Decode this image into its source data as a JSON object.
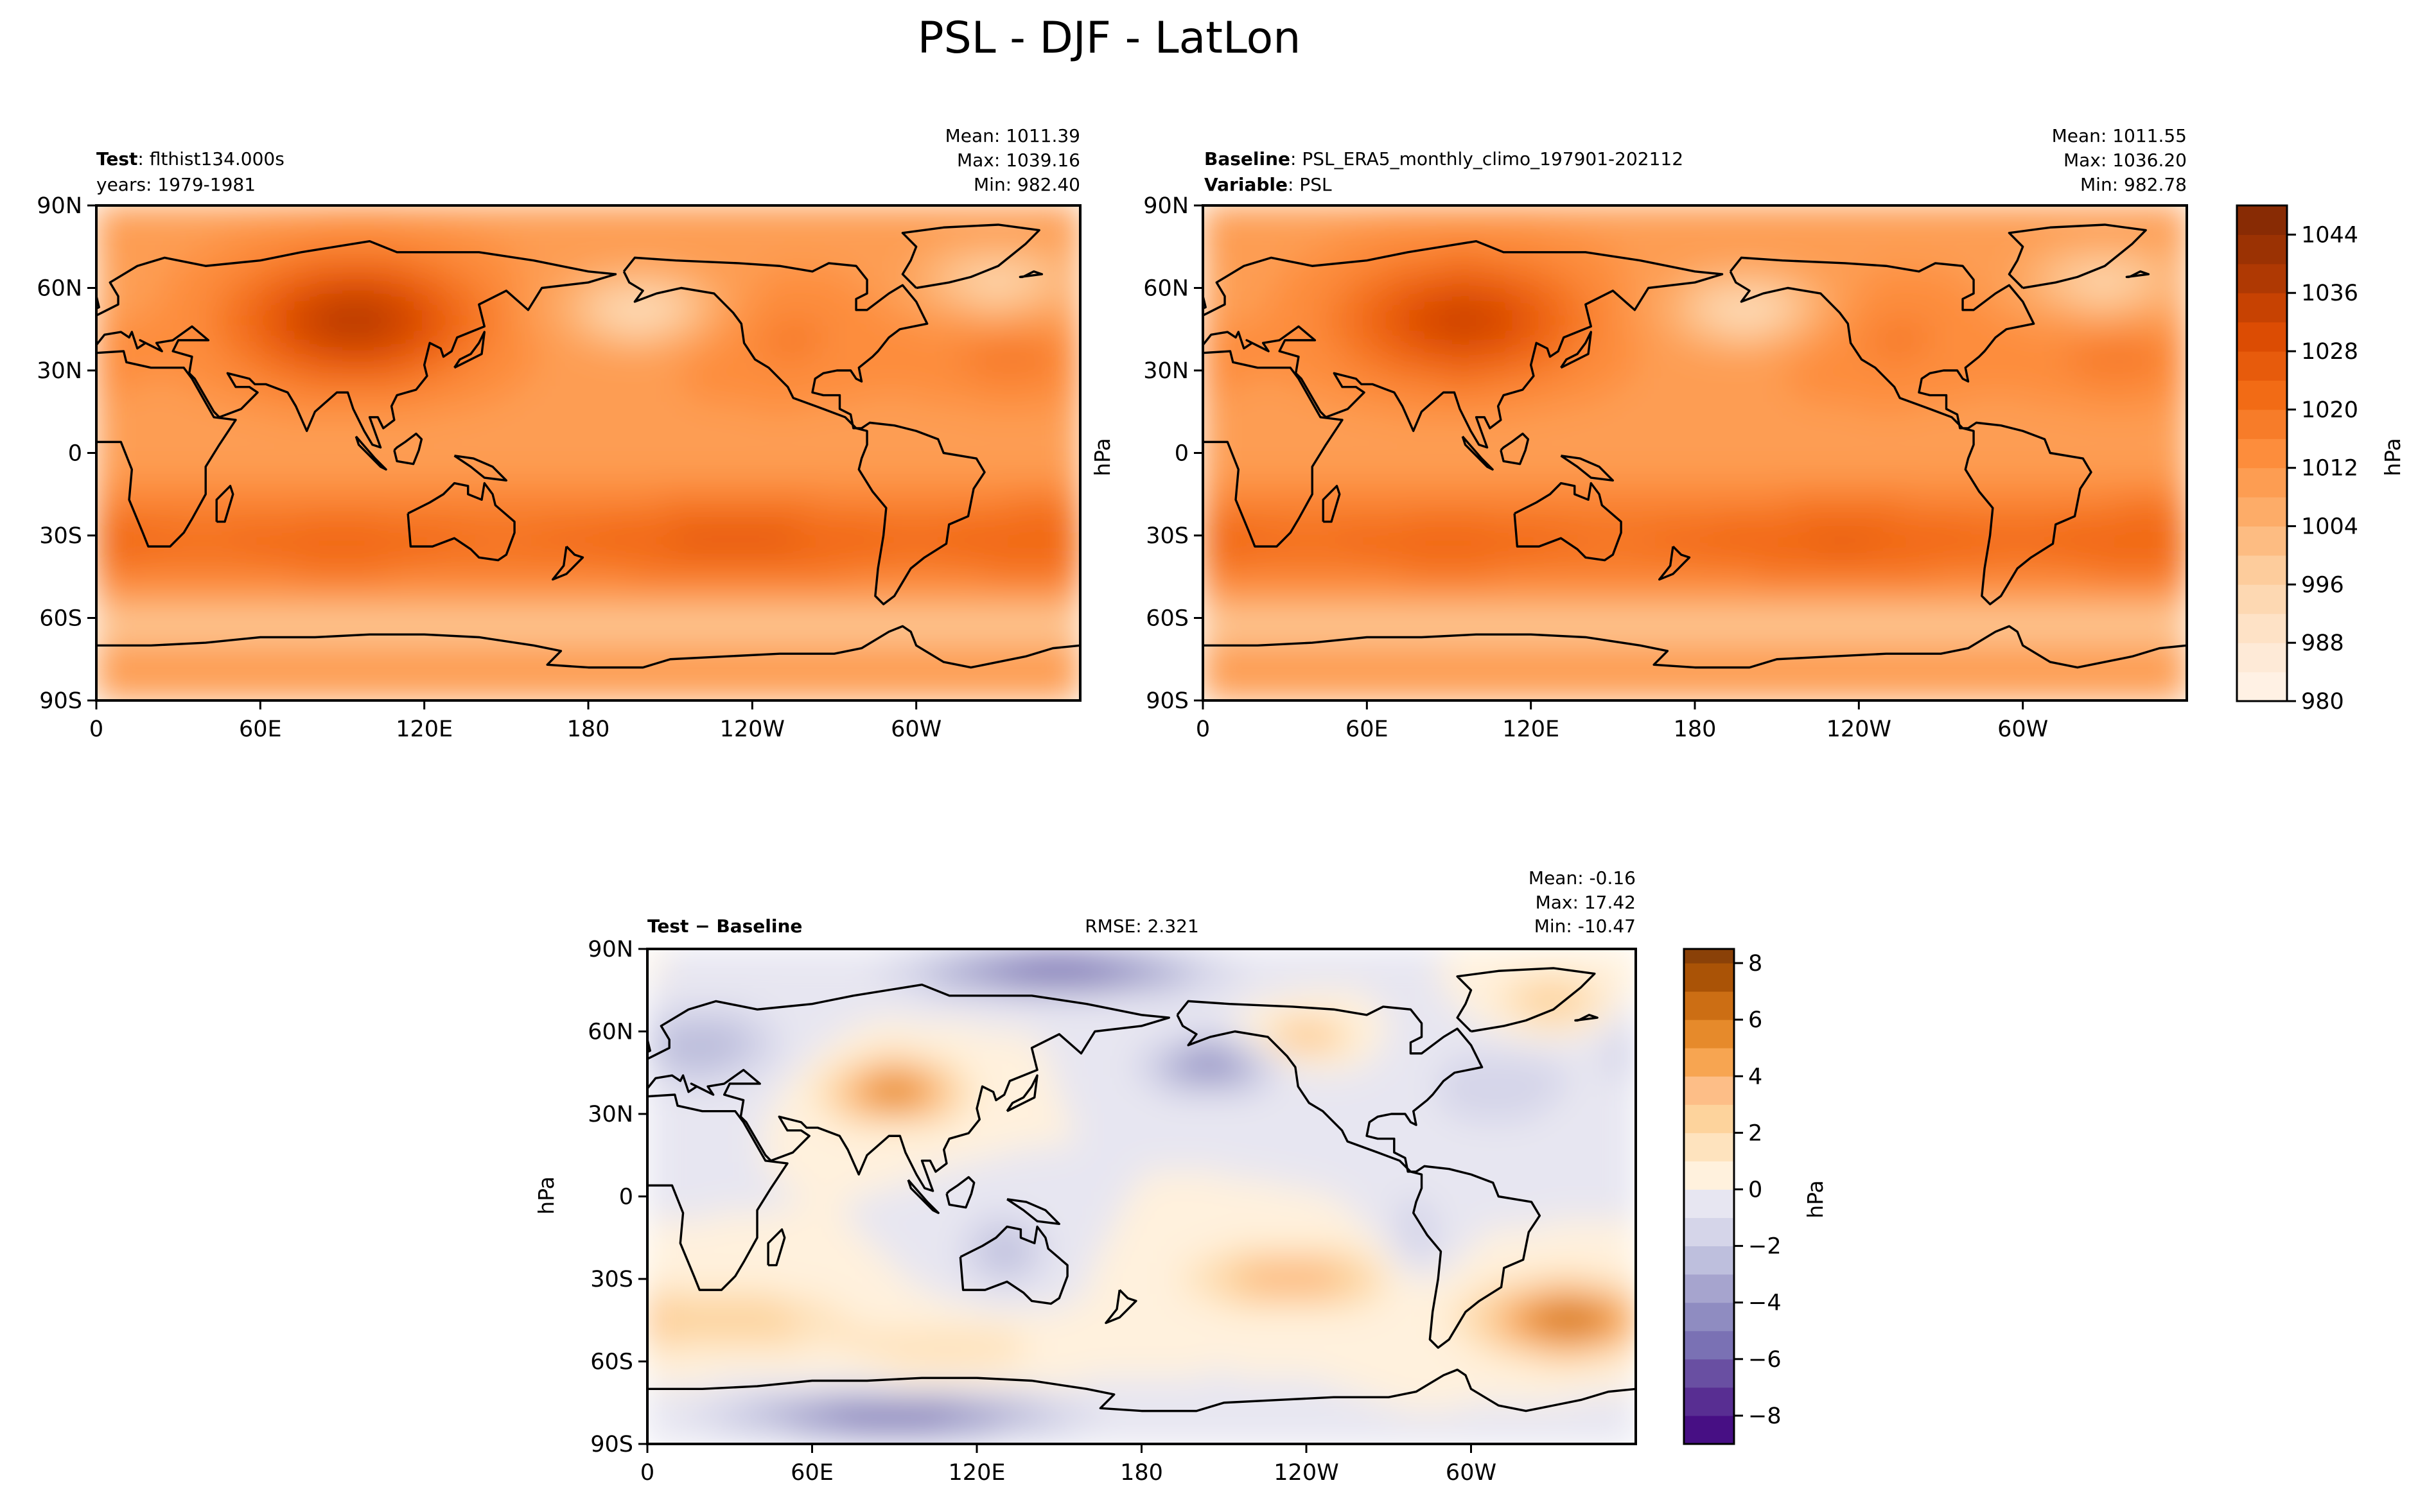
{
  "figure": {
    "title": "PSL - DJF - LatLon"
  },
  "colors": {
    "psl_ramp": [
      "#fff5eb",
      "#fee6ce",
      "#fdd0a2",
      "#fdae6b",
      "#fd8d3c",
      "#f16913",
      "#d94801",
      "#a63603",
      "#7f2704"
    ],
    "diff_neg": [
      "#3f007d",
      "#54278f",
      "#6a51a3",
      "#807dba",
      "#9e9ac8",
      "#bcbddc",
      "#dadaeb",
      "#efedf5"
    ],
    "diff_pos": [
      "#fff7ec",
      "#fee8c8",
      "#fdd49e",
      "#fdbb84",
      "#f59c3c",
      "#d97a1b",
      "#b35806",
      "#7f3b08"
    ],
    "land_line": "#000000"
  },
  "chart_data": [
    {
      "type": "heatmap",
      "id": "test",
      "title_bold": "Test",
      "title_rest": ": flthist134.000s",
      "subtitle": "years: 1979-1981",
      "stats": [
        "Mean: 1011.39",
        "Max: 1039.16",
        "Min: 982.40"
      ],
      "x_ticks": [
        "0",
        "60E",
        "120E",
        "180",
        "120W",
        "60W"
      ],
      "x_values": [
        0,
        60,
        120,
        180,
        240,
        300
      ],
      "y_ticks": [
        "90N",
        "60N",
        "30N",
        "0",
        "30S",
        "60S",
        "90S"
      ],
      "y_values": [
        90,
        60,
        30,
        0,
        -30,
        -60,
        -90
      ],
      "xlim": [
        0,
        360
      ],
      "ylim": [
        -90,
        90
      ],
      "ylabel": "",
      "field": "psl_test"
    },
    {
      "type": "heatmap",
      "id": "baseline",
      "title_lines": [
        {
          "bold": "Baseline",
          "rest": ": PSL_ERA5_monthly_climo_197901-202112"
        },
        {
          "bold": "Variable",
          "rest": ": PSL"
        }
      ],
      "stats": [
        "Mean: 1011.55",
        "Max: 1036.20",
        "Min: 982.78"
      ],
      "x_ticks": [
        "0",
        "60E",
        "120E",
        "180",
        "120W",
        "60W"
      ],
      "x_values": [
        0,
        60,
        120,
        180,
        240,
        300
      ],
      "y_ticks": [
        "90N",
        "60N",
        "30N",
        "0",
        "30S",
        "60S",
        "90S"
      ],
      "y_values": [
        90,
        60,
        30,
        0,
        -30,
        -60,
        -90
      ],
      "xlim": [
        0,
        360
      ],
      "ylim": [
        -90,
        90
      ],
      "ylabel": "hPa",
      "field": "psl_base"
    },
    {
      "type": "heatmap",
      "id": "diff",
      "title_bold": "Test",
      "title_rest": " − Baseline",
      "center_text": "RMSE: 2.321",
      "stats": [
        "Mean: -0.16",
        "Max: 17.42",
        "Min: -10.47"
      ],
      "x_ticks": [
        "0",
        "60E",
        "120E",
        "180",
        "120W",
        "60W"
      ],
      "x_values": [
        0,
        60,
        120,
        180,
        240,
        300
      ],
      "y_ticks": [
        "90N",
        "60N",
        "30N",
        "0",
        "30S",
        "60S",
        "90S"
      ],
      "y_values": [
        90,
        60,
        30,
        0,
        -30,
        -60,
        -90
      ],
      "xlim": [
        0,
        360
      ],
      "ylim": [
        -90,
        90
      ],
      "ylabel": "hPa",
      "field": "psl_diff"
    },
    {
      "type": "colorbar",
      "id": "cbar-psl",
      "label": "hPa",
      "range": [
        980,
        1048
      ],
      "levels": [
        980,
        984,
        988,
        992,
        996,
        1000,
        1004,
        1008,
        1012,
        1016,
        1020,
        1024,
        1028,
        1032,
        1036,
        1040,
        1044,
        1048
      ],
      "tick_values": [
        980,
        988,
        996,
        1004,
        1012,
        1020,
        1028,
        1036,
        1044
      ],
      "tick_labels": [
        "980",
        "988",
        "996",
        "1004",
        "1012",
        "1020",
        "1028",
        "1036",
        "1044"
      ]
    },
    {
      "type": "colorbar",
      "id": "cbar-diff",
      "label": "hPa",
      "range": [
        -9,
        8.5
      ],
      "levels": [
        -9,
        -8,
        -7,
        -6,
        -5,
        -4,
        -3,
        -2,
        -1,
        0,
        1,
        2,
        3,
        4,
        5,
        6,
        7,
        8,
        8.5
      ],
      "tick_values": [
        -8,
        -6,
        -4,
        -2,
        0,
        2,
        4,
        6,
        8
      ],
      "tick_labels": [
        "−8",
        "−6",
        "−4",
        "−2",
        "0",
        "2",
        "4",
        "6",
        "8"
      ]
    }
  ],
  "coastlines": {
    "units": "lon_lat_degrees",
    "outlines": [
      [
        [
          -17,
          21
        ],
        [
          -10,
          28
        ],
        [
          -6,
          36
        ],
        [
          10,
          37
        ],
        [
          11,
          33
        ],
        [
          20,
          31
        ],
        [
          32,
          31
        ],
        [
          35,
          27
        ],
        [
          43,
          13
        ],
        [
          51,
          12
        ],
        [
          45,
          3
        ],
        [
          40,
          -5
        ],
        [
          40,
          -15
        ],
        [
          35,
          -24
        ],
        [
          32,
          -29
        ],
        [
          27,
          -34
        ],
        [
          19,
          -34
        ],
        [
          17,
          -29
        ],
        [
          12,
          -17
        ],
        [
          13,
          -6
        ],
        [
          9,
          4
        ],
        [
          -8,
          4
        ],
        [
          -17,
          14
        ],
        [
          -17,
          21
        ]
      ],
      [
        [
          -10,
          36
        ],
        [
          -9,
          43
        ],
        [
          -1,
          46
        ],
        [
          -4,
          48
        ],
        [
          2,
          51
        ],
        [
          8,
          54
        ],
        [
          8,
          57
        ],
        [
          5,
          62
        ],
        [
          15,
          68
        ],
        [
          25,
          71
        ],
        [
          40,
          68
        ],
        [
          60,
          70
        ],
        [
          75,
          73
        ],
        [
          100,
          77
        ],
        [
          110,
          73
        ],
        [
          140,
          73
        ],
        [
          160,
          70
        ],
        [
          180,
          66
        ],
        [
          190,
          65
        ],
        [
          180,
          62
        ],
        [
          163,
          60
        ],
        [
          158,
          52
        ],
        [
          150,
          59
        ],
        [
          140,
          54
        ],
        [
          142,
          46
        ],
        [
          132,
          42
        ],
        [
          130,
          37
        ],
        [
          127,
          35
        ],
        [
          126,
          38
        ],
        [
          122,
          40
        ],
        [
          120,
          32
        ],
        [
          121,
          28
        ],
        [
          117,
          23
        ],
        [
          110,
          21
        ],
        [
          108,
          17
        ],
        [
          109,
          12
        ],
        [
          105,
          9
        ],
        [
          103,
          13
        ],
        [
          100,
          13
        ],
        [
          104,
          2
        ],
        [
          101,
          3
        ],
        [
          98,
          8
        ],
        [
          94,
          16
        ],
        [
          92,
          22
        ],
        [
          88,
          22
        ],
        [
          80,
          15
        ],
        [
          77,
          8
        ],
        [
          73,
          17
        ],
        [
          70,
          22
        ],
        [
          62,
          25
        ],
        [
          58,
          25
        ],
        [
          56,
          27
        ],
        [
          48,
          29
        ],
        [
          51,
          24
        ],
        [
          56,
          24
        ],
        [
          59,
          22
        ],
        [
          53,
          16
        ],
        [
          45,
          13
        ],
        [
          43,
          15
        ],
        [
          36,
          27
        ],
        [
          34,
          29
        ],
        [
          35,
          35
        ],
        [
          28,
          37
        ],
        [
          30,
          41
        ],
        [
          41,
          41
        ],
        [
          35,
          46
        ],
        [
          28,
          41
        ],
        [
          22,
          40
        ],
        [
          24,
          37
        ],
        [
          20,
          39
        ],
        [
          16,
          41
        ],
        [
          18,
          40
        ],
        [
          15,
          38
        ],
        [
          13,
          44
        ],
        [
          12,
          42
        ],
        [
          9,
          44
        ],
        [
          3,
          43
        ],
        [
          -1,
          38
        ],
        [
          -6,
          36
        ],
        [
          -10,
          36
        ]
      ],
      [
        [
          193,
          66
        ],
        [
          197,
          71
        ],
        [
          212,
          70
        ],
        [
          235,
          69
        ],
        [
          250,
          68
        ],
        [
          262,
          66
        ],
        [
          268,
          69
        ],
        [
          278,
          68
        ],
        [
          282,
          63
        ],
        [
          282,
          58
        ],
        [
          278,
          56
        ],
        [
          278,
          52
        ],
        [
          282,
          52
        ],
        [
          290,
          58
        ],
        [
          295,
          61
        ],
        [
          300,
          55
        ],
        [
          304,
          47
        ],
        [
          294,
          45
        ],
        [
          290,
          42
        ],
        [
          286,
          37
        ],
        [
          284,
          35
        ],
        [
          279,
          31
        ],
        [
          280,
          26
        ],
        [
          278,
          27
        ],
        [
          276,
          30
        ],
        [
          271,
          30
        ],
        [
          266,
          29
        ],
        [
          263,
          27
        ],
        [
          262,
          22
        ],
        [
          266,
          21
        ],
        [
          272,
          21
        ],
        [
          272,
          16
        ],
        [
          276,
          14
        ],
        [
          277,
          9
        ],
        [
          280,
          9
        ],
        [
          283,
          11
        ],
        [
          292,
          10
        ],
        [
          300,
          8
        ],
        [
          308,
          5
        ],
        [
          310,
          0
        ],
        [
          322,
          -2
        ],
        [
          325,
          -7
        ],
        [
          321,
          -13
        ],
        [
          319,
          -23
        ],
        [
          312,
          -26
        ],
        [
          311,
          -33
        ],
        [
          303,
          -38
        ],
        [
          298,
          -42
        ],
        [
          295,
          -47
        ],
        [
          292,
          -52
        ],
        [
          288,
          -55
        ],
        [
          285,
          -52
        ],
        [
          286,
          -42
        ],
        [
          288,
          -30
        ],
        [
          289,
          -20
        ],
        [
          284,
          -14
        ],
        [
          279,
          -6
        ],
        [
          280,
          -2
        ],
        [
          282,
          3
        ],
        [
          282,
          8
        ],
        [
          278,
          9
        ],
        [
          274,
          13
        ],
        [
          266,
          16
        ],
        [
          255,
          20
        ],
        [
          253,
          24
        ],
        [
          246,
          31
        ],
        [
          241,
          34
        ],
        [
          237,
          40
        ],
        [
          236,
          47
        ],
        [
          233,
          51
        ],
        [
          226,
          58
        ],
        [
          214,
          60
        ],
        [
          205,
          58
        ],
        [
          197,
          55
        ],
        [
          200,
          59
        ],
        [
          195,
          62
        ],
        [
          193,
          66
        ]
      ],
      [
        [
          114,
          -22
        ],
        [
          115,
          -34
        ],
        [
          123,
          -34
        ],
        [
          131,
          -31
        ],
        [
          137,
          -35
        ],
        [
          140,
          -38
        ],
        [
          147,
          -39
        ],
        [
          150,
          -37
        ],
        [
          153,
          -29
        ],
        [
          153,
          -25
        ],
        [
          146,
          -19
        ],
        [
          145,
          -15
        ],
        [
          142,
          -11
        ],
        [
          141,
          -17
        ],
        [
          136,
          -15
        ],
        [
          136,
          -12
        ],
        [
          131,
          -11
        ],
        [
          127,
          -15
        ],
        [
          122,
          -18
        ],
        [
          114,
          -22
        ]
      ],
      [
        [
          0,
          -70
        ],
        [
          20,
          -70
        ],
        [
          40,
          -69
        ],
        [
          60,
          -67
        ],
        [
          80,
          -67
        ],
        [
          100,
          -66
        ],
        [
          120,
          -66
        ],
        [
          140,
          -67
        ],
        [
          160,
          -70
        ],
        [
          170,
          -72
        ],
        [
          165,
          -77
        ],
        [
          180,
          -78
        ],
        [
          200,
          -78
        ],
        [
          210,
          -75
        ],
        [
          230,
          -74
        ],
        [
          250,
          -73
        ],
        [
          270,
          -73
        ],
        [
          280,
          -71
        ],
        [
          290,
          -65
        ],
        [
          295,
          -63
        ],
        [
          298,
          -65
        ],
        [
          300,
          -70
        ],
        [
          310,
          -76
        ],
        [
          320,
          -78
        ],
        [
          340,
          -74
        ],
        [
          350,
          -71
        ],
        [
          360,
          -70
        ],
        [
          360,
          -90
        ],
        [
          0,
          -90
        ],
        [
          0,
          -70
        ]
      ],
      [
        [
          300,
          60
        ],
        [
          295,
          65
        ],
        [
          298,
          70
        ],
        [
          300,
          75
        ],
        [
          295,
          80
        ],
        [
          310,
          82
        ],
        [
          330,
          83
        ],
        [
          345,
          81
        ],
        [
          340,
          76
        ],
        [
          335,
          72
        ],
        [
          330,
          68
        ],
        [
          320,
          64
        ],
        [
          312,
          62
        ],
        [
          300,
          60
        ]
      ],
      [
        [
          -5,
          50
        ],
        [
          -3,
          54
        ],
        [
          -6,
          57
        ],
        [
          -3,
          59
        ],
        [
          0,
          57
        ],
        [
          1,
          53
        ],
        [
          -5,
          50
        ]
      ],
      [
        [
          131,
          31
        ],
        [
          133,
          34
        ],
        [
          137,
          36
        ],
        [
          140,
          40
        ],
        [
          142,
          44
        ],
        [
          141,
          36
        ],
        [
          137,
          34
        ],
        [
          131,
          31
        ]
      ],
      [
        [
          95,
          6
        ],
        [
          102,
          -2
        ],
        [
          106,
          -6
        ],
        [
          104,
          -5
        ],
        [
          96,
          3
        ],
        [
          95,
          6
        ]
      ],
      [
        [
          109,
          1
        ],
        [
          110,
          2
        ],
        [
          113,
          4
        ],
        [
          117,
          7
        ],
        [
          119,
          5
        ],
        [
          118,
          1
        ],
        [
          116,
          -4
        ],
        [
          110,
          -3
        ],
        [
          109,
          1
        ]
      ],
      [
        [
          131,
          -1
        ],
        [
          138,
          -2
        ],
        [
          145,
          -5
        ],
        [
          150,
          -10
        ],
        [
          142,
          -9
        ],
        [
          137,
          -5
        ],
        [
          131,
          -1
        ]
      ],
      [
        [
          44,
          -25
        ],
        [
          47,
          -25
        ],
        [
          50,
          -15
        ],
        [
          49,
          -12
        ],
        [
          44,
          -17
        ],
        [
          44,
          -25
        ]
      ],
      [
        [
          172,
          -34
        ],
        [
          175,
          -37
        ],
        [
          178,
          -38
        ],
        [
          174,
          -42
        ],
        [
          172,
          -44
        ],
        [
          167,
          -46
        ],
        [
          171,
          -41
        ],
        [
          172,
          -34
        ]
      ],
      [
        [
          339,
          64
        ],
        [
          343,
          66
        ],
        [
          346,
          65
        ],
        [
          338,
          64
        ],
        [
          339,
          64
        ]
      ]
    ]
  }
}
